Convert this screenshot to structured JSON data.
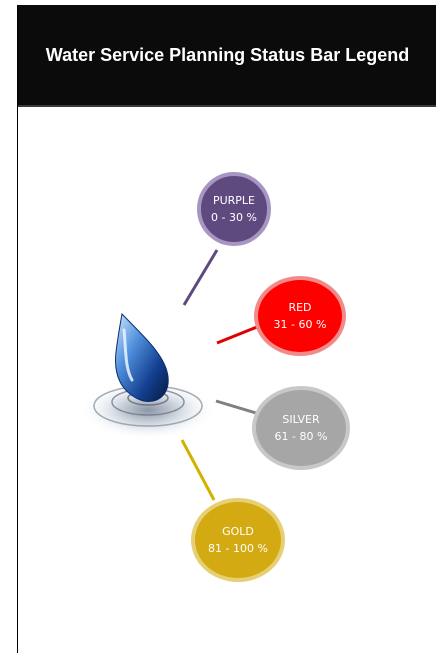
{
  "header": {
    "title": "Water Service Planning Status Bar Legend"
  },
  "legend": [
    {
      "color_name": "PURPLE",
      "range": "0 - 30 %",
      "fill": "#5f4a80",
      "line": "#5f4a80"
    },
    {
      "color_name": "RED",
      "range": "31 - 60 %",
      "fill": "#ff0000",
      "line": "#e00000"
    },
    {
      "color_name": "SILVER",
      "range": "61 - 80 %",
      "fill": "#a6a6a6",
      "line": "#808080"
    },
    {
      "color_name": "GOLD",
      "range": "81 - 100 %",
      "fill": "#d4aa13",
      "line": "#d4b000"
    }
  ],
  "icons": {
    "center": "water-drop-icon"
  }
}
